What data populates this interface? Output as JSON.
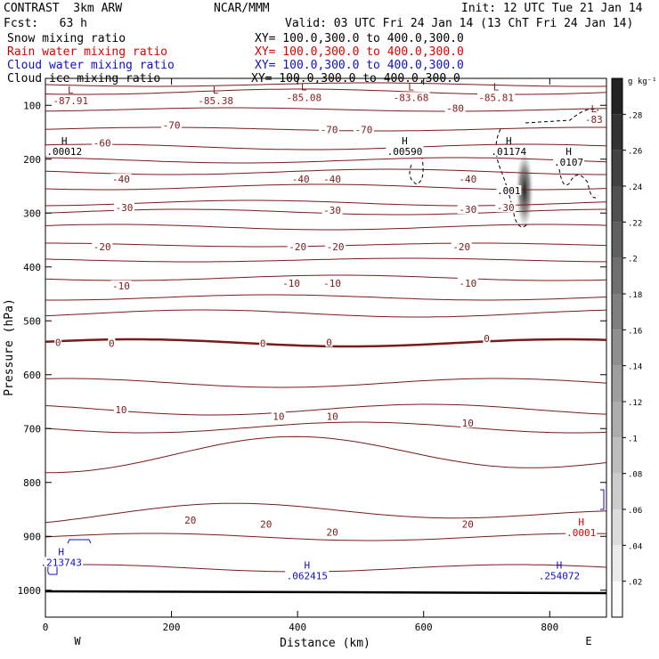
{
  "header": {
    "title": "CONTRAST  3km ARW",
    "center": "NCAR/MMM",
    "init": "Init: 12 UTC Tue 21 Jan 14",
    "fcst": "Fcst:   63 h",
    "valid": "Valid: 03 UTC Fri 24 Jan 14 (13 ChT Fri 24 Jan 14)"
  },
  "fields": [
    {
      "label": "Snow mixing ratio",
      "xy": "XY= 100.0,300.0 to 400.0,300.0",
      "color": "#000000"
    },
    {
      "label": "Rain water mixing ratio",
      "xy": "XY= 100.0,300.0 to 400.0,300.0",
      "color": "#e00000"
    },
    {
      "label": "Cloud water mixing ratio",
      "xy": "XY= 100.0,300.0 to 400.0,300.0",
      "color": "#1010c8"
    },
    {
      "label": "Cloud ice mixing ratio",
      "xy": "XY= 100.0,300.0 to 400.0,300.0",
      "color": "#000000"
    }
  ],
  "chart_data": {
    "type": "contour",
    "xlabel": "Distance (km)",
    "ylabel": "Pressure (hPa)",
    "xlim": [
      0,
      890
    ],
    "ylim": [
      50,
      1050
    ],
    "x_ticks": [
      0,
      200,
      400,
      600,
      800
    ],
    "y_ticks": [
      100,
      200,
      300,
      400,
      500,
      600,
      700,
      800,
      900,
      1000
    ],
    "side_labels": {
      "left": "W",
      "right": "E"
    },
    "colorbar": {
      "units": "g kg⁻¹",
      "ticks": [
        ".02",
        ".04",
        ".06",
        ".08",
        ".1",
        ".12",
        ".14",
        ".16",
        ".18",
        ".2",
        ".22",
        ".24",
        ".26",
        ".28"
      ]
    },
    "temperature_labels": [
      {
        "text": "-60",
        "x": 90,
        "p": 170
      },
      {
        "text": "-70",
        "x": 200,
        "p": 137
      },
      {
        "text": "-70",
        "x": 450,
        "p": 145
      },
      {
        "text": "-70",
        "x": 505,
        "p": 145
      },
      {
        "text": "-80",
        "x": 650,
        "p": 105
      },
      {
        "text": "-40",
        "x": 120,
        "p": 237
      },
      {
        "text": "-40",
        "x": 405,
        "p": 237
      },
      {
        "text": "-40",
        "x": 455,
        "p": 237
      },
      {
        "text": "-40",
        "x": 670,
        "p": 237
      },
      {
        "text": "-30",
        "x": 125,
        "p": 290
      },
      {
        "text": "-30",
        "x": 455,
        "p": 295
      },
      {
        "text": "-30",
        "x": 670,
        "p": 293
      },
      {
        "text": "-30",
        "x": 730,
        "p": 290
      },
      {
        "text": "-20",
        "x": 90,
        "p": 362
      },
      {
        "text": "-20",
        "x": 400,
        "p": 362
      },
      {
        "text": "-20",
        "x": 460,
        "p": 362
      },
      {
        "text": "-20",
        "x": 660,
        "p": 362
      },
      {
        "text": "-10",
        "x": 120,
        "p": 435
      },
      {
        "text": "-10",
        "x": 390,
        "p": 430
      },
      {
        "text": "-10",
        "x": 455,
        "p": 430
      },
      {
        "text": "-10",
        "x": 670,
        "p": 430
      },
      {
        "text": "0",
        "x": 20,
        "p": 540
      },
      {
        "text": "0",
        "x": 105,
        "p": 542
      },
      {
        "text": "0",
        "x": 345,
        "p": 542
      },
      {
        "text": "0",
        "x": 450,
        "p": 540
      },
      {
        "text": "0",
        "x": 700,
        "p": 533
      },
      {
        "text": "10",
        "x": 120,
        "p": 665
      },
      {
        "text": "10",
        "x": 370,
        "p": 677
      },
      {
        "text": "10",
        "x": 455,
        "p": 677
      },
      {
        "text": "10",
        "x": 670,
        "p": 690
      },
      {
        "text": "20",
        "x": 230,
        "p": 870
      },
      {
        "text": "20",
        "x": 350,
        "p": 877
      },
      {
        "text": "20",
        "x": 455,
        "p": 892
      },
      {
        "text": "20",
        "x": 670,
        "p": 877
      }
    ],
    "extrema": [
      {
        "mark": "L",
        "value": "-87.91",
        "x": 40,
        "p": 78,
        "color": "#8b1a1a"
      },
      {
        "mark": "L",
        "value": "-85.38",
        "x": 270,
        "p": 78,
        "color": "#8b1a1a"
      },
      {
        "mark": "L",
        "value": "-85.08",
        "x": 410,
        "p": 72,
        "color": "#8b1a1a"
      },
      {
        "mark": "L",
        "value": "-83.68",
        "x": 580,
        "p": 72,
        "color": "#8b1a1a"
      },
      {
        "mark": "L",
        "value": "-85.81",
        "x": 715,
        "p": 72,
        "color": "#8b1a1a"
      },
      {
        "mark": "L",
        "value": "-83",
        "x": 870,
        "p": 113,
        "color": "#8b1a1a"
      },
      {
        "mark": "H",
        "value": ".00012",
        "x": 30,
        "p": 172,
        "color": "#000000"
      },
      {
        "mark": "H",
        "value": ".00590",
        "x": 570,
        "p": 172,
        "color": "#000000"
      },
      {
        "mark": "H",
        "value": ".01174",
        "x": 735,
        "p": 172,
        "color": "#000000"
      },
      {
        "mark": "H",
        "value": ".0107",
        "x": 830,
        "p": 192,
        "color": "#000000"
      },
      {
        "mark": "",
        "value": ".001",
        "x": 735,
        "p": 245,
        "color": "#000000"
      },
      {
        "mark": "H",
        "value": ".0001",
        "x": 850,
        "p": 880,
        "color": "#e00000"
      },
      {
        "mark": "H",
        "value": ".213743",
        "x": 25,
        "p": 935,
        "color": "#1010c8"
      },
      {
        "mark": "H",
        "value": ".062415",
        "x": 415,
        "p": 960,
        "color": "#1010c8"
      },
      {
        "mark": "H",
        "value": ".254072",
        "x": 815,
        "p": 960,
        "color": "#1010c8"
      }
    ]
  }
}
